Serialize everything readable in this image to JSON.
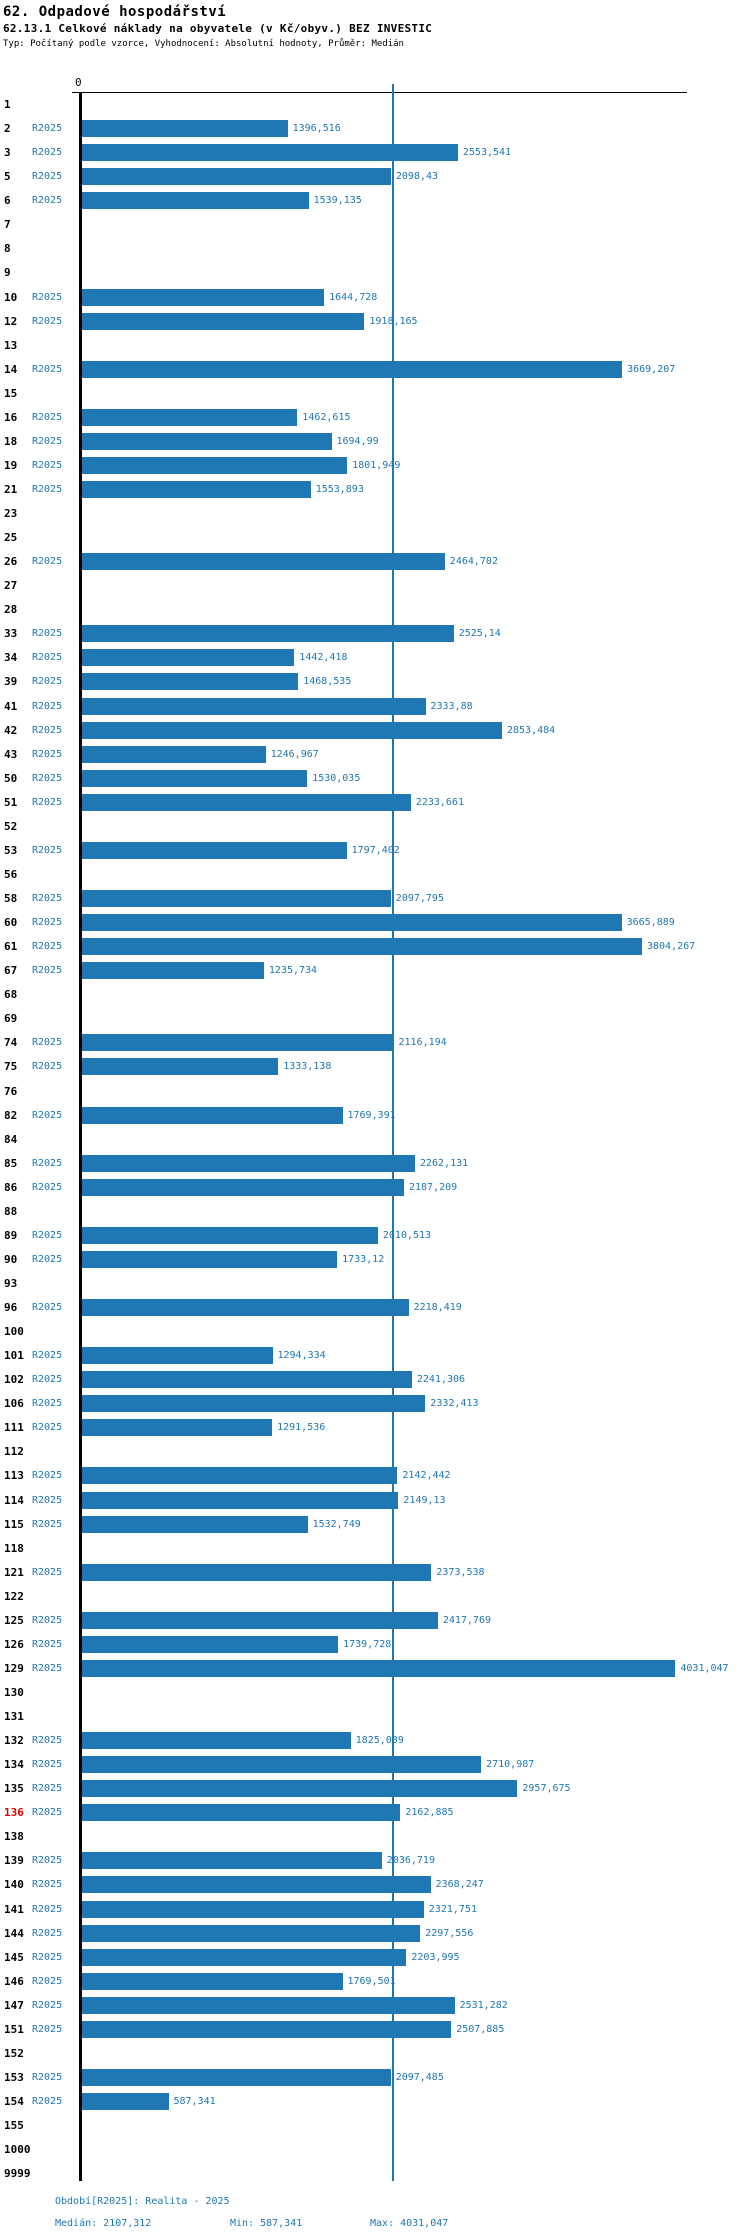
{
  "title": "62. Odpadové hospodářství",
  "subtitle": "62.13.1 Celkové náklady na obyvatele (v Kč/obyv.) BEZ INVESTIC",
  "meta": "Typ: Počítaný podle vzorce, Vyhodnocení: Absolutní hodnoty, Průměr: Medián",
  "colors": {
    "bar": "#1f77b4",
    "label_blue": "#1f77b4",
    "highlight_row": "#dd0000",
    "axis": "#000000"
  },
  "footer": {
    "period": "Období[R2025]: Realita - 2025",
    "median": "Medián: 2107,312",
    "min": "Min: 587,341",
    "max": "Max: 4031,047"
  },
  "chart_data": {
    "type": "bar",
    "orientation": "horizontal",
    "series_label": "R2025",
    "zero_tick_label": "0",
    "xlim": [
      0,
      4180
    ],
    "median": 2107.312,
    "min": 587.341,
    "max": 4031.047,
    "grid": false,
    "rows": [
      {
        "id": "1",
        "value": null
      },
      {
        "id": "2",
        "value": 1396.516,
        "label": "1396,516"
      },
      {
        "id": "3",
        "value": 2553.541,
        "label": "2553,541"
      },
      {
        "id": "5",
        "value": 2098.43,
        "label": "2098,43"
      },
      {
        "id": "6",
        "value": 1539.135,
        "label": "1539,135"
      },
      {
        "id": "7",
        "value": null
      },
      {
        "id": "8",
        "value": null
      },
      {
        "id": "9",
        "value": null
      },
      {
        "id": "10",
        "value": 1644.728,
        "label": "1644,728"
      },
      {
        "id": "12",
        "value": 1918.165,
        "label": "1918,165"
      },
      {
        "id": "13",
        "value": null
      },
      {
        "id": "14",
        "value": 3669.207,
        "label": "3669,207"
      },
      {
        "id": "15",
        "value": null
      },
      {
        "id": "16",
        "value": 1462.615,
        "label": "1462,615"
      },
      {
        "id": "18",
        "value": 1694.99,
        "label": "1694,99"
      },
      {
        "id": "19",
        "value": 1801.949,
        "label": "1801,949"
      },
      {
        "id": "21",
        "value": 1553.893,
        "label": "1553,893"
      },
      {
        "id": "23",
        "value": null
      },
      {
        "id": "25",
        "value": null
      },
      {
        "id": "26",
        "value": 2464.702,
        "label": "2464,702"
      },
      {
        "id": "27",
        "value": null
      },
      {
        "id": "28",
        "value": null
      },
      {
        "id": "33",
        "value": 2525.14,
        "label": "2525,14"
      },
      {
        "id": "34",
        "value": 1442.418,
        "label": "1442,418"
      },
      {
        "id": "39",
        "value": 1468.535,
        "label": "1468,535"
      },
      {
        "id": "41",
        "value": 2333.88,
        "label": "2333,88"
      },
      {
        "id": "42",
        "value": 2853.484,
        "label": "2853,484"
      },
      {
        "id": "43",
        "value": 1246.967,
        "label": "1246,967"
      },
      {
        "id": "50",
        "value": 1530.035,
        "label": "1530,035"
      },
      {
        "id": "51",
        "value": 2233.661,
        "label": "2233,661"
      },
      {
        "id": "52",
        "value": null
      },
      {
        "id": "53",
        "value": 1797.402,
        "label": "1797,402"
      },
      {
        "id": "56",
        "value": null
      },
      {
        "id": "58",
        "value": 2097.795,
        "label": "2097,795"
      },
      {
        "id": "60",
        "value": 3665.889,
        "label": "3665,889"
      },
      {
        "id": "61",
        "value": 3804.267,
        "label": "3804,267"
      },
      {
        "id": "67",
        "value": 1235.734,
        "label": "1235,734"
      },
      {
        "id": "68",
        "value": null
      },
      {
        "id": "69",
        "value": null
      },
      {
        "id": "74",
        "value": 2116.194,
        "label": "2116,194"
      },
      {
        "id": "75",
        "value": 1333.138,
        "label": "1333,138"
      },
      {
        "id": "76",
        "value": null
      },
      {
        "id": "82",
        "value": 1769.391,
        "label": "1769,391"
      },
      {
        "id": "84",
        "value": null
      },
      {
        "id": "85",
        "value": 2262.131,
        "label": "2262,131"
      },
      {
        "id": "86",
        "value": 2187.209,
        "label": "2187,209"
      },
      {
        "id": "88",
        "value": null
      },
      {
        "id": "89",
        "value": 2010.513,
        "label": "2010,513"
      },
      {
        "id": "90",
        "value": 1733.12,
        "label": "1733,12"
      },
      {
        "id": "93",
        "value": null
      },
      {
        "id": "96",
        "value": 2218.419,
        "label": "2218,419"
      },
      {
        "id": "100",
        "value": null
      },
      {
        "id": "101",
        "value": 1294.334,
        "label": "1294,334"
      },
      {
        "id": "102",
        "value": 2241.306,
        "label": "2241,306"
      },
      {
        "id": "106",
        "value": 2332.413,
        "label": "2332,413"
      },
      {
        "id": "111",
        "value": 1291.536,
        "label": "1291,536"
      },
      {
        "id": "112",
        "value": null
      },
      {
        "id": "113",
        "value": 2142.442,
        "label": "2142,442"
      },
      {
        "id": "114",
        "value": 2149.13,
        "label": "2149,13"
      },
      {
        "id": "115",
        "value": 1532.749,
        "label": "1532,749"
      },
      {
        "id": "118",
        "value": null
      },
      {
        "id": "121",
        "value": 2373.538,
        "label": "2373,538"
      },
      {
        "id": "122",
        "value": null
      },
      {
        "id": "125",
        "value": 2417.769,
        "label": "2417,769"
      },
      {
        "id": "126",
        "value": 1739.728,
        "label": "1739,728"
      },
      {
        "id": "129",
        "value": 4031.047,
        "label": "4031,047"
      },
      {
        "id": "130",
        "value": null
      },
      {
        "id": "131",
        "value": null
      },
      {
        "id": "132",
        "value": 1825.089,
        "label": "1825,089"
      },
      {
        "id": "134",
        "value": 2710.987,
        "label": "2710,987"
      },
      {
        "id": "135",
        "value": 2957.675,
        "label": "2957,675"
      },
      {
        "id": "136",
        "value": 2162.885,
        "label": "2162,885",
        "highlight": true
      },
      {
        "id": "138",
        "value": null
      },
      {
        "id": "139",
        "value": 2036.719,
        "label": "2036,719"
      },
      {
        "id": "140",
        "value": 2368.247,
        "label": "2368,247"
      },
      {
        "id": "141",
        "value": 2321.751,
        "label": "2321,751"
      },
      {
        "id": "144",
        "value": 2297.556,
        "label": "2297,556"
      },
      {
        "id": "145",
        "value": 2203.995,
        "label": "2203,995"
      },
      {
        "id": "146",
        "value": 1769.501,
        "label": "1769,501"
      },
      {
        "id": "147",
        "value": 2531.282,
        "label": "2531,282"
      },
      {
        "id": "151",
        "value": 2507.885,
        "label": "2507,885"
      },
      {
        "id": "152",
        "value": null
      },
      {
        "id": "153",
        "value": 2097.485,
        "label": "2097,485"
      },
      {
        "id": "154",
        "value": 587.341,
        "label": "587,341"
      },
      {
        "id": "155",
        "value": null
      },
      {
        "id": "1000",
        "value": null
      },
      {
        "id": "9999",
        "value": null
      }
    ]
  }
}
